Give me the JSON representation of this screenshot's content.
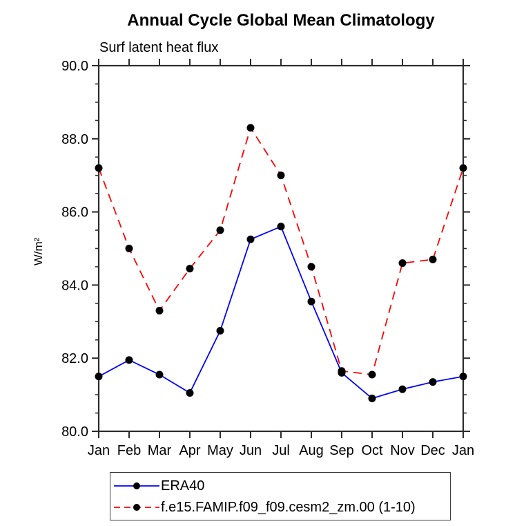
{
  "header": {
    "title": "Annual Cycle Global Mean Climatology",
    "subtitle": "Surf latent heat flux"
  },
  "chart_data": {
    "type": "line",
    "title": "Annual Cycle Global Mean Climatology",
    "subtitle": "Surf latent heat flux",
    "xlabel": "",
    "ylabel": "W/m²",
    "categories": [
      "Jan",
      "Feb",
      "Mar",
      "Apr",
      "May",
      "Jun",
      "Jul",
      "Aug",
      "Sep",
      "Oct",
      "Nov",
      "Dec",
      "Jan"
    ],
    "series": [
      {
        "name": "ERA40",
        "color": "#0000ff",
        "line_style": "solid",
        "marker": "filled-circle",
        "marker_color": "#000000",
        "values": [
          81.5,
          81.95,
          81.55,
          81.05,
          82.75,
          85.25,
          85.6,
          83.55,
          81.6,
          80.9,
          81.15,
          81.35,
          81.5
        ]
      },
      {
        "name": "f.e15.FAMIP.f09_f09.cesm2_zm.00 (1-10)",
        "color": "#ff0000",
        "line_style": "dashed",
        "marker": "filled-circle",
        "marker_color": "#000000",
        "values": [
          87.2,
          85.0,
          83.3,
          84.45,
          85.5,
          88.3,
          87.0,
          84.5,
          81.65,
          81.55,
          84.6,
          84.7,
          87.2
        ]
      }
    ],
    "ylim": [
      80.0,
      90.0
    ],
    "ytick_major_labels": [
      "80.0",
      "82.0",
      "84.0",
      "86.0",
      "88.0",
      "90.0"
    ],
    "ytick_major_values": [
      80.0,
      82.0,
      84.0,
      86.0,
      88.0,
      90.0
    ],
    "ytick_minor_step": 0.5,
    "grid": false,
    "axis_color": "#2b2b2b",
    "legend_position": "bottom-left"
  }
}
